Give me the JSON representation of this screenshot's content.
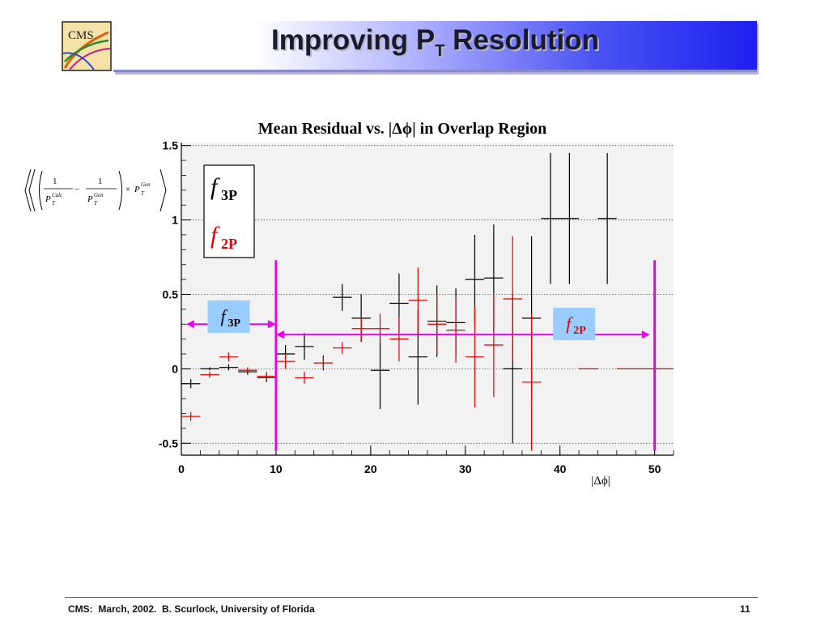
{
  "slide": {
    "title_main": "Improving P",
    "title_sub": "T",
    "title_rest": " Resolution",
    "logo_text": "CMS",
    "footer": "CMS:  March, 2002.  B. Scurlock, University of Florida",
    "page_number": "11"
  },
  "formula": {
    "numerator_1": "1",
    "numerator_2": "1",
    "denom_1_base": "P",
    "denom_1_sup": "Calc",
    "denom_1_sub": "T",
    "denom_2_base": "P",
    "denom_2_sup": "Gen",
    "denom_2_sub": "T",
    "minus": "−",
    "times": "×",
    "factor_base": "P",
    "factor_sup": "Gen",
    "factor_sub": "T"
  },
  "colors": {
    "series_f3p": "#000000",
    "series_f2p": "#e00000",
    "region_lines": "#ee00ee",
    "annotation_box": "#99ccff",
    "plot_bg": "#f2f2f2"
  },
  "chart_data": {
    "type": "scatter",
    "title": "Mean Residual vs.  |Δϕ| in Overlap Region",
    "xlabel": "|Δϕ|",
    "ylabel": "",
    "xlim": [
      0,
      52
    ],
    "ylim": [
      -0.58,
      1.52
    ],
    "x_ticks": [
      0,
      10,
      20,
      30,
      40,
      50
    ],
    "y_ticks": [
      -0.5,
      0,
      0.5,
      1,
      1.5
    ],
    "x_tick_labels": [
      "0",
      "10",
      "20",
      "30",
      "40",
      "50"
    ],
    "y_tick_labels": [
      "-0.5",
      "0",
      "0.5",
      "1",
      "1.5"
    ],
    "grid": true,
    "legend": {
      "position": "top-left",
      "entries": [
        {
          "italic": "f",
          "sub": "3P",
          "color": "#000000"
        },
        {
          "italic": "f",
          "sub": "2P",
          "color": "#e00000"
        }
      ]
    },
    "series": [
      {
        "name": "f3P",
        "color": "#000000",
        "points": [
          {
            "x": 1,
            "y": -0.1,
            "yerr": 0.03,
            "xerr": 1
          },
          {
            "x": 3,
            "y": 0.0,
            "yerr": 0.01,
            "xerr": 1
          },
          {
            "x": 5,
            "y": 0.01,
            "yerr": 0.02,
            "xerr": 1
          },
          {
            "x": 7,
            "y": -0.02,
            "yerr": 0.02,
            "xerr": 1
          },
          {
            "x": 9,
            "y": -0.06,
            "yerr": 0.03,
            "xerr": 1
          },
          {
            "x": 11,
            "y": 0.1,
            "yerr": 0.06,
            "xerr": 1
          },
          {
            "x": 13,
            "y": 0.15,
            "yerr": 0.09,
            "xerr": 1
          },
          {
            "x": 15,
            "y": 0.04,
            "yerr": 0.05,
            "xerr": 1
          },
          {
            "x": 17,
            "y": 0.48,
            "yerr": 0.09,
            "xerr": 1
          },
          {
            "x": 19,
            "y": 0.34,
            "yerr": 0.16,
            "xerr": 1
          },
          {
            "x": 21,
            "y": -0.01,
            "yerr": 0.26,
            "xerr": 1
          },
          {
            "x": 23,
            "y": 0.44,
            "yerr": 0.2,
            "xerr": 1
          },
          {
            "x": 25,
            "y": 0.08,
            "yerr": 0.32,
            "xerr": 1
          },
          {
            "x": 27,
            "y": 0.32,
            "yerr": 0.24,
            "xerr": 1
          },
          {
            "x": 29,
            "y": 0.31,
            "yerr": 0.23,
            "xerr": 1
          },
          {
            "x": 31,
            "y": 0.6,
            "yerr": 0.3,
            "xerr": 1
          },
          {
            "x": 33,
            "y": 0.61,
            "yerr": 0.36,
            "xerr": 1
          },
          {
            "x": 35,
            "y": 0.0,
            "yerr": 0.5,
            "xerr": 1
          },
          {
            "x": 37,
            "y": 0.34,
            "yerr": 0.55,
            "xerr": 1
          },
          {
            "x": 39,
            "y": 1.01,
            "yerr": 0.44,
            "xerr": 1
          },
          {
            "x": 41,
            "y": 1.01,
            "yerr": 0.44,
            "xerr": 1
          },
          {
            "x": 45,
            "y": 1.01,
            "yerr": 0.44,
            "xerr": 1
          }
        ]
      },
      {
        "name": "f2P",
        "color": "#e00000",
        "points": [
          {
            "x": 1,
            "y": -0.32,
            "yerr": 0.03,
            "xerr": 1
          },
          {
            "x": 3,
            "y": -0.04,
            "yerr": 0.02,
            "xerr": 1
          },
          {
            "x": 5,
            "y": 0.08,
            "yerr": 0.03,
            "xerr": 1
          },
          {
            "x": 7,
            "y": -0.01,
            "yerr": 0.02,
            "xerr": 1
          },
          {
            "x": 9,
            "y": -0.05,
            "yerr": 0.03,
            "xerr": 1
          },
          {
            "x": 11,
            "y": 0.05,
            "yerr": 0.05,
            "xerr": 1
          },
          {
            "x": 13,
            "y": -0.06,
            "yerr": 0.04,
            "xerr": 1
          },
          {
            "x": 15,
            "y": 0.04,
            "yerr": 0.04,
            "xerr": 1
          },
          {
            "x": 17,
            "y": 0.14,
            "yerr": 0.04,
            "xerr": 1
          },
          {
            "x": 19,
            "y": 0.27,
            "yerr": 0.08,
            "xerr": 1
          },
          {
            "x": 21,
            "y": 0.27,
            "yerr": 0.1,
            "xerr": 1
          },
          {
            "x": 23,
            "y": 0.2,
            "yerr": 0.15,
            "xerr": 1
          },
          {
            "x": 25,
            "y": 0.46,
            "yerr": 0.22,
            "xerr": 1
          },
          {
            "x": 27,
            "y": 0.3,
            "yerr": 0.2,
            "xerr": 1
          },
          {
            "x": 29,
            "y": 0.26,
            "yerr": 0.22,
            "xerr": 1
          },
          {
            "x": 31,
            "y": 0.08,
            "yerr": 0.34,
            "xerr": 1
          },
          {
            "x": 33,
            "y": 0.16,
            "yerr": 0.35,
            "xerr": 1
          },
          {
            "x": 35,
            "y": 0.47,
            "yerr": 0.42,
            "xerr": 1
          },
          {
            "x": 37,
            "y": -0.09,
            "yerr": 0.46,
            "xerr": 1
          },
          {
            "x": 43,
            "y": 0.0,
            "yerr": 0.0,
            "xerr": 1
          },
          {
            "x": 47,
            "y": 0.0,
            "yerr": 0.0,
            "xerr": 1
          },
          {
            "x": 49,
            "y": 0.0,
            "yerr": 0.0,
            "xerr": 1
          },
          {
            "x": 51,
            "y": 0.0,
            "yerr": 0.0,
            "xerr": 1
          }
        ]
      }
    ],
    "vertical_lines": [
      {
        "x": 10,
        "y_from": -0.55,
        "y_to": 0.73
      },
      {
        "x": 50,
        "y_from": -0.55,
        "y_to": 0.73
      }
    ],
    "annotations": [
      {
        "label_italic": "f",
        "label_sub": "3P",
        "color": "#000000",
        "x_from": 0.5,
        "x_to": 10,
        "y": 0.3
      },
      {
        "label_italic": "f",
        "label_sub": "2P",
        "color": "#e00000",
        "x_from": 10,
        "x_to": 49.5,
        "y": 0.23
      }
    ]
  }
}
